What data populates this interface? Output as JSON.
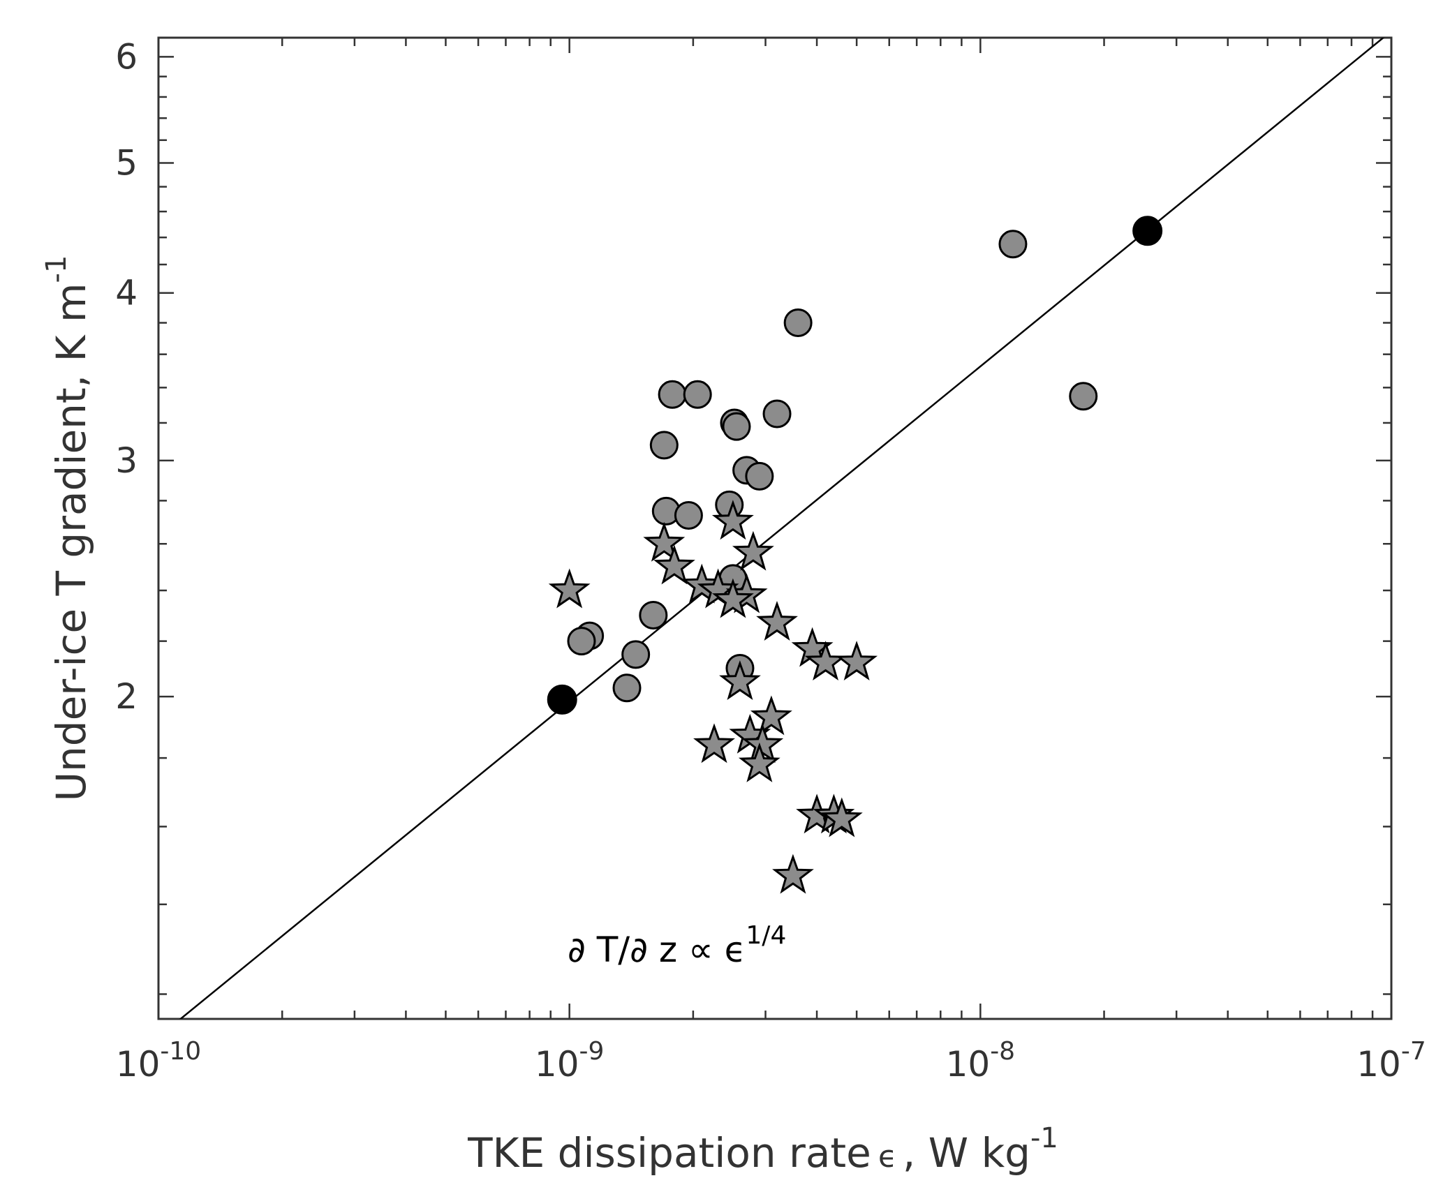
{
  "chart_data": {
    "type": "scatter",
    "xscale": "log",
    "yscale": "log",
    "xlim": [
      1e-10,
      1e-07
    ],
    "ylim": [
      1.15,
      6.2
    ],
    "xlabel": {
      "main": "TKE dissipation rate",
      "symbol": "ϵ",
      "unit": ", W kg",
      "exp": "-1"
    },
    "ylabel": {
      "main": "Under-ice T gradient, K m",
      "exp": "-1"
    },
    "x_ticks": [
      {
        "base": "10",
        "exp": "-10",
        "value": 1e-10
      },
      {
        "base": "10",
        "exp": "-9",
        "value": 1e-09
      },
      {
        "base": "10",
        "exp": "-8",
        "value": 1e-08
      },
      {
        "base": "10",
        "exp": "-7",
        "value": 1e-07
      }
    ],
    "y_ticks": [
      {
        "label": "2",
        "value": 2
      },
      {
        "label": "3",
        "value": 3
      },
      {
        "label": "4",
        "value": 4
      },
      {
        "label": "5",
        "value": 5
      },
      {
        "label": "6",
        "value": 6
      }
    ],
    "annotation": {
      "text": "∂ T/∂ z ∝ ϵ",
      "exp": "1/4"
    },
    "fit_line": {
      "x": [
        1e-10,
        1e-07
      ],
      "y": [
        1.115,
        6.27
      ],
      "color": "#000000"
    },
    "series": [
      {
        "marker": "circle",
        "color": "#8c8c8c",
        "points": [
          [
            1.2e-08,
            4.35
          ],
          [
            1.78e-08,
            3.35
          ],
          [
            3.6e-09,
            3.8
          ],
          [
            3.2e-09,
            3.25
          ],
          [
            1.78e-09,
            3.36
          ],
          [
            2.05e-09,
            3.36
          ],
          [
            2.52e-09,
            3.2
          ],
          [
            2.55e-09,
            3.18
          ],
          [
            1.7e-09,
            3.08
          ],
          [
            2.7e-09,
            2.95
          ],
          [
            2.9e-09,
            2.92
          ],
          [
            2.45e-09,
            2.78
          ],
          [
            1.72e-09,
            2.75
          ],
          [
            1.95e-09,
            2.73
          ],
          [
            2.5e-09,
            2.45
          ],
          [
            1.6e-09,
            2.3
          ],
          [
            1.12e-09,
            2.22
          ],
          [
            1.07e-09,
            2.2
          ],
          [
            1.45e-09,
            2.15
          ],
          [
            2.6e-09,
            2.1
          ],
          [
            1.38e-09,
            2.03
          ]
        ]
      },
      {
        "marker": "circle",
        "color": "#000000",
        "points": [
          [
            2.55e-08,
            4.45
          ],
          [
            9.6e-10,
            1.99
          ]
        ]
      },
      {
        "marker": "star",
        "color": "#8c8c8c",
        "points": [
          [
            2.5e-09,
            2.7
          ],
          [
            1.7e-09,
            2.6
          ],
          [
            2.8e-09,
            2.56
          ],
          [
            1.8e-09,
            2.5
          ],
          [
            1e-09,
            2.4
          ],
          [
            2.1e-09,
            2.42
          ],
          [
            2.3e-09,
            2.4
          ],
          [
            2.7e-09,
            2.38
          ],
          [
            2.5e-09,
            2.36
          ],
          [
            3.2e-09,
            2.27
          ],
          [
            3.9e-09,
            2.17
          ],
          [
            4.2e-09,
            2.12
          ],
          [
            5e-09,
            2.12
          ],
          [
            2.6e-09,
            2.05
          ],
          [
            3.1e-09,
            1.93
          ],
          [
            2.25e-09,
            1.84
          ],
          [
            2.75e-09,
            1.87
          ],
          [
            2.95e-09,
            1.84
          ],
          [
            2.9e-09,
            1.78
          ],
          [
            4e-09,
            1.63
          ],
          [
            4.4e-09,
            1.63
          ],
          [
            4.6e-09,
            1.62
          ],
          [
            3.5e-09,
            1.47
          ]
        ]
      }
    ]
  }
}
